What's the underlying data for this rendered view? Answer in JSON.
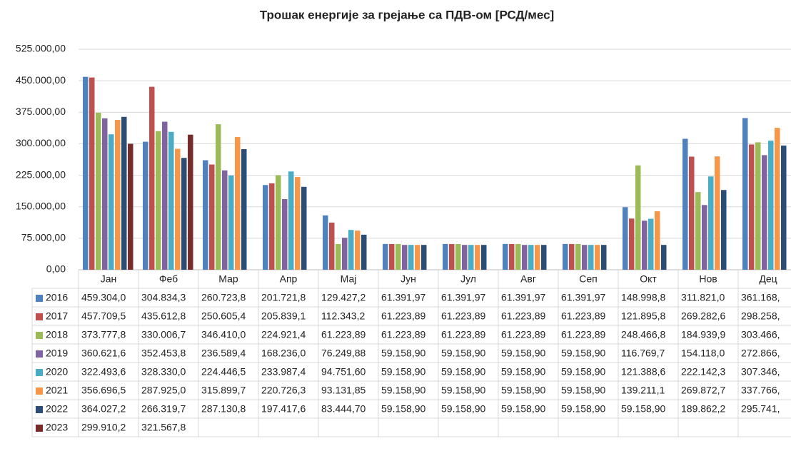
{
  "chart_data": {
    "type": "bar",
    "title": "Трошак енергије за грејање са ПДВ-ом [РСД/мес]",
    "categories": [
      "Јан",
      "Феб",
      "Мар",
      "Апр",
      "Мај",
      "Јун",
      "Јул",
      "Авг",
      "Сеп",
      "Окт",
      "Нов",
      "Дец"
    ],
    "ylim": [
      0,
      525000
    ],
    "yticks": [
      {
        "value": 0,
        "label": "0,00"
      },
      {
        "value": 75000,
        "label": "75.000,00"
      },
      {
        "value": 150000,
        "label": "150.000,00"
      },
      {
        "value": 225000,
        "label": "225.000,00"
      },
      {
        "value": 300000,
        "label": "300.000,00"
      },
      {
        "value": 375000,
        "label": "375.000,00"
      },
      {
        "value": 450000,
        "label": "450.000,00"
      },
      {
        "value": 525000,
        "label": "525.000,00"
      }
    ],
    "grid": true,
    "series": [
      {
        "name": "2016",
        "color": "#4f81bd",
        "values": [
          459304.0,
          304834.3,
          260723.8,
          201721.8,
          129427.2,
          61391.97,
          61391.97,
          61391.97,
          61391.97,
          148998.8,
          311821.0,
          361168
        ],
        "value_labels": [
          "459.304,0",
          "304.834,3",
          "260.723,8",
          "201.721,8",
          "129.427,2",
          "61.391,97",
          "61.391,97",
          "61.391,97",
          "61.391,97",
          "148.998,8",
          "311.821,0",
          "361.168,"
        ]
      },
      {
        "name": "2017",
        "color": "#c0504d",
        "values": [
          457709.5,
          435612.8,
          250605.4,
          205839.1,
          112343.2,
          61223.89,
          61223.89,
          61223.89,
          61223.89,
          121895.8,
          269282.6,
          298258
        ],
        "value_labels": [
          "457.709,5",
          "435.612,8",
          "250.605,4",
          "205.839,1",
          "112.343,2",
          "61.223,89",
          "61.223,89",
          "61.223,89",
          "61.223,89",
          "121.895,8",
          "269.282,6",
          "298.258,"
        ]
      },
      {
        "name": "2018",
        "color": "#9bbb59",
        "values": [
          373777.8,
          330006.7,
          346410.0,
          224921.4,
          61223.89,
          61223.89,
          61223.89,
          61223.89,
          61223.89,
          248466.8,
          184939.9,
          303466
        ],
        "value_labels": [
          "373.777,8",
          "330.006,7",
          "346.410,0",
          "224.921,4",
          "61.223,89",
          "61.223,89",
          "61.223,89",
          "61.223,89",
          "61.223,89",
          "248.466,8",
          "184.939,9",
          "303.466,"
        ]
      },
      {
        "name": "2019",
        "color": "#8064a2",
        "values": [
          360621.6,
          352453.8,
          236589.4,
          168236.0,
          76249.88,
          59158.9,
          59158.9,
          59158.9,
          59158.9,
          116769.7,
          154118.0,
          272866
        ],
        "value_labels": [
          "360.621,6",
          "352.453,8",
          "236.589,4",
          "168.236,0",
          "76.249,88",
          "59.158,90",
          "59.158,90",
          "59.158,90",
          "59.158,90",
          "116.769,7",
          "154.118,0",
          "272.866,"
        ]
      },
      {
        "name": "2020",
        "color": "#4bacc6",
        "values": [
          322493.6,
          328330.0,
          224446.5,
          233987.4,
          94751.6,
          59158.9,
          59158.9,
          59158.9,
          59158.9,
          121388.6,
          222142.3,
          307346
        ],
        "value_labels": [
          "322.493,6",
          "328.330,0",
          "224.446,5",
          "233.987,4",
          "94.751,60",
          "59.158,90",
          "59.158,90",
          "59.158,90",
          "59.158,90",
          "121.388,6",
          "222.142,3",
          "307.346,"
        ]
      },
      {
        "name": "2021",
        "color": "#f79646",
        "values": [
          356696.5,
          287925.0,
          315899.7,
          220726.3,
          93131.85,
          59158.9,
          59158.9,
          59158.9,
          59158.9,
          139211.1,
          269872.7,
          337766
        ],
        "value_labels": [
          "356.696,5",
          "287.925,0",
          "315.899,7",
          "220.726,3",
          "93.131,85",
          "59.158,90",
          "59.158,90",
          "59.158,90",
          "59.158,90",
          "139.211,1",
          "269.872,7",
          "337.766,"
        ]
      },
      {
        "name": "2022",
        "color": "#2c4d75",
        "values": [
          364027.2,
          266319.7,
          287130.8,
          197417.6,
          83444.7,
          59158.9,
          59158.9,
          59158.9,
          59158.9,
          59158.9,
          189862.2,
          295741
        ],
        "value_labels": [
          "364.027,2",
          "266.319,7",
          "287.130,8",
          "197.417,6",
          "83.444,70",
          "59.158,90",
          "59.158,90",
          "59.158,90",
          "59.158,90",
          "59.158,90",
          "189.862,2",
          "295.741,"
        ]
      },
      {
        "name": "2023",
        "color": "#772c2a",
        "values": [
          299910.2,
          321567.8,
          null,
          null,
          null,
          null,
          null,
          null,
          null,
          null,
          null,
          null
        ],
        "value_labels": [
          "299.910,2",
          "321.567,8",
          null,
          null,
          null,
          null,
          null,
          null,
          null,
          null,
          null,
          null
        ]
      }
    ]
  }
}
